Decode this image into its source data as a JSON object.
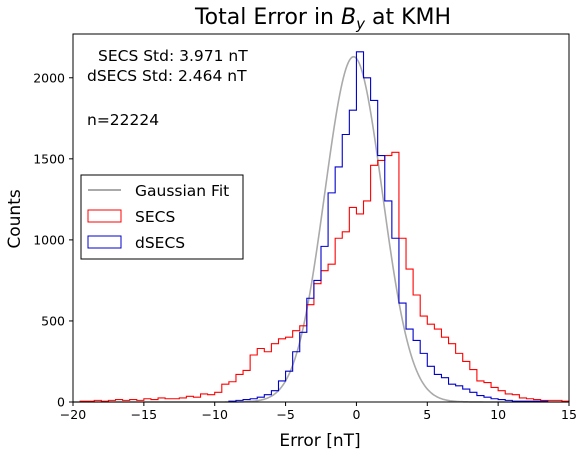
{
  "chart_data": {
    "type": "histogram",
    "title_prefix": "Total Error in ",
    "title_var": "B",
    "title_sub": "y",
    "title_suffix": " at KMH",
    "xlabel": "Error [nT]",
    "ylabel": "Counts",
    "xlim": [
      -20,
      15
    ],
    "ylim": [
      0,
      2270
    ],
    "xticks": [
      -20,
      -15,
      -10,
      -5,
      0,
      5,
      10,
      15
    ],
    "yticks": [
      0,
      500,
      1000,
      1500,
      2000
    ],
    "annotations": {
      "secs_std": "SECS Std: 3.971 nT",
      "dsecs_std": "dSECS Std: 2.464 nT",
      "n": "n=22224"
    },
    "legend": {
      "position": "center-left",
      "gaussian_label": "Gaussian Fit",
      "secs_label": "SECS",
      "dsecs_label": "dSECS"
    },
    "colors": {
      "secs": "#ff0000",
      "dsecs": "#0000cc",
      "gaussian": "#aaaaaa"
    },
    "bin_edges": [
      -20,
      -19.5,
      -19,
      -18.5,
      -18,
      -17.5,
      -17,
      -16.5,
      -16,
      -15.5,
      -15,
      -14.5,
      -14,
      -13.5,
      -13,
      -12.5,
      -12,
      -11.5,
      -11,
      -10.5,
      -10,
      -9.5,
      -9,
      -8.5,
      -8,
      -7.5,
      -7,
      -6.5,
      -6,
      -5.5,
      -5,
      -4.5,
      -4,
      -3.5,
      -3,
      -2.5,
      -2,
      -1.5,
      -1,
      -0.5,
      0,
      0.5,
      1,
      1.5,
      2,
      2.5,
      3,
      3.5,
      4,
      4.5,
      5,
      5.5,
      6,
      6.5,
      7,
      7.5,
      8,
      8.5,
      9,
      9.5,
      10,
      10.5,
      11,
      11.5,
      12,
      12.5,
      13,
      13.5,
      14,
      14.5,
      15
    ],
    "series": [
      {
        "name": "SECS",
        "counts": [
          0,
          5,
          5,
          10,
          5,
          10,
          15,
          10,
          15,
          10,
          20,
          15,
          25,
          20,
          20,
          25,
          35,
          30,
          50,
          45,
          60,
          110,
          125,
          170,
          195,
          290,
          330,
          310,
          360,
          390,
          400,
          440,
          470,
          600,
          730,
          810,
          850,
          1010,
          1050,
          1200,
          1160,
          1240,
          1460,
          1490,
          1520,
          1540,
          1010,
          820,
          660,
          530,
          480,
          450,
          400,
          360,
          300,
          250,
          200,
          130,
          120,
          90,
          70,
          50,
          45,
          25,
          20,
          15,
          10,
          10,
          10,
          5
        ]
      },
      {
        "name": "dSECS",
        "counts": [
          0,
          0,
          0,
          0,
          0,
          0,
          0,
          0,
          0,
          0,
          0,
          0,
          0,
          0,
          0,
          0,
          0,
          0,
          0,
          0,
          0,
          0,
          5,
          10,
          15,
          20,
          30,
          45,
          70,
          130,
          190,
          310,
          430,
          640,
          750,
          960,
          1290,
          1450,
          1650,
          1800,
          2160,
          2000,
          1860,
          1520,
          1240,
          1010,
          610,
          450,
          380,
          300,
          220,
          170,
          150,
          110,
          100,
          80,
          60,
          40,
          30,
          20,
          15,
          10,
          5,
          5,
          5,
          5,
          5,
          0,
          0,
          0
        ]
      }
    ],
    "gaussian_fit": {
      "amplitude": 2130,
      "mean": -0.2,
      "std": 2.03
    }
  }
}
